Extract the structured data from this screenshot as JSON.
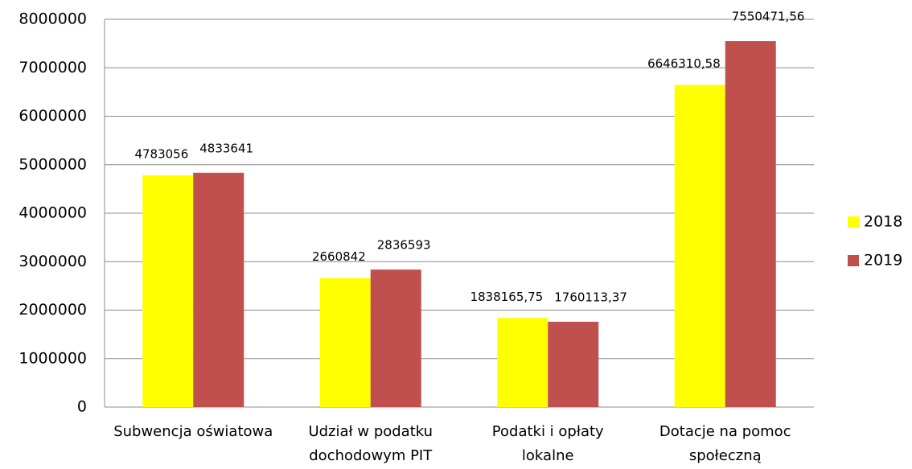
{
  "chart_data": {
    "type": "bar",
    "categories": [
      "Subwencja oświatowa",
      "Udział w podatku dochodowym PIT",
      "Podatki i opłaty lokalne",
      "Dotacje na pomoc społeczną"
    ],
    "series": [
      {
        "name": "2018",
        "color": "#ffff00",
        "values": [
          4783056,
          2660842,
          1838165.75,
          6646310.58
        ],
        "value_labels": [
          "4783056",
          "2660842",
          "1838165,75",
          "6646310,58"
        ]
      },
      {
        "name": "2019",
        "color": "#c0504d",
        "values": [
          4833641,
          2836593,
          1760113.37,
          7550471.56
        ],
        "value_labels": [
          "4833641",
          "2836593",
          "1760113,37",
          "7550471,56"
        ]
      }
    ],
    "ylim": [
      0,
      8000000
    ],
    "yticks": [
      0,
      1000000,
      2000000,
      3000000,
      4000000,
      5000000,
      6000000,
      7000000,
      8000000
    ],
    "grid": true,
    "legend": "right"
  }
}
